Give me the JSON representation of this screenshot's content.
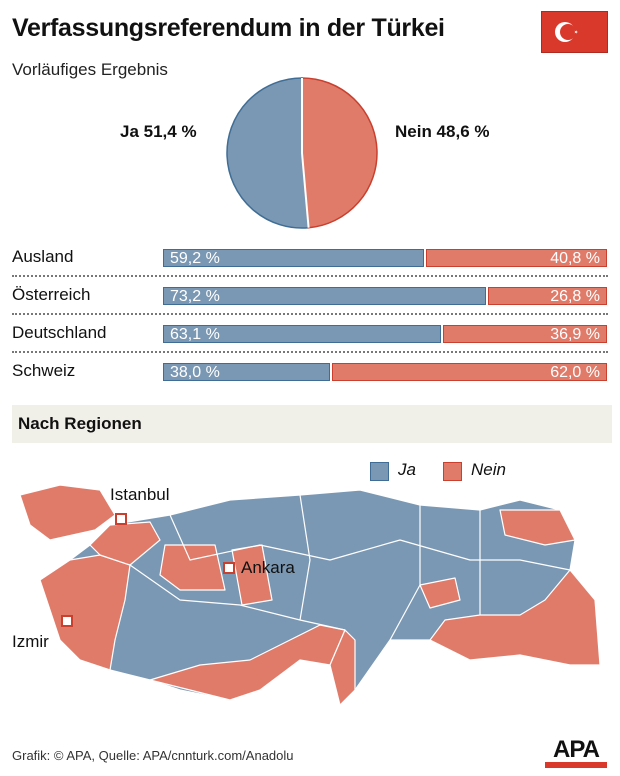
{
  "title": "Verfassungsreferendum in der Türkei",
  "subtitle": "Vorläufiges Ergebnis",
  "flag_icon": "turkey-flag",
  "colors": {
    "ja": "#7a98b3",
    "nein": "#e07b6a",
    "flag": "#d9392b"
  },
  "chart_data": [
    {
      "type": "pie",
      "slices": [
        {
          "name": "Ja",
          "value": 51.4,
          "label": "Ja 51,4 %"
        },
        {
          "name": "Nein",
          "value": 48.6,
          "label": "Nein 48,6 %"
        }
      ]
    },
    {
      "type": "bar",
      "stacked": true,
      "orientation": "horizontal",
      "categories": [
        "Ausland",
        "Österreich",
        "Deutschland",
        "Schweiz"
      ],
      "series": [
        {
          "name": "Ja",
          "values": [
            59.2,
            73.2,
            63.1,
            38.0
          ],
          "labels": [
            "59,2 %",
            "73,2 %",
            "63,1 %",
            "38,0 %"
          ]
        },
        {
          "name": "Nein",
          "values": [
            40.8,
            26.8,
            36.9,
            62.0
          ],
          "labels": [
            "40,8 %",
            "26,8 %",
            "36,9 %",
            "62,0 %"
          ]
        }
      ]
    }
  ],
  "regions": {
    "title": "Nach Regionen",
    "legend": [
      "Ja",
      "Nein"
    ],
    "cities": [
      "Istanbul",
      "Ankara",
      "Izmir"
    ]
  },
  "footer": "Grafik: © APA, Quelle: APA/cnnturk.com/Anadolu",
  "logo": "APA"
}
